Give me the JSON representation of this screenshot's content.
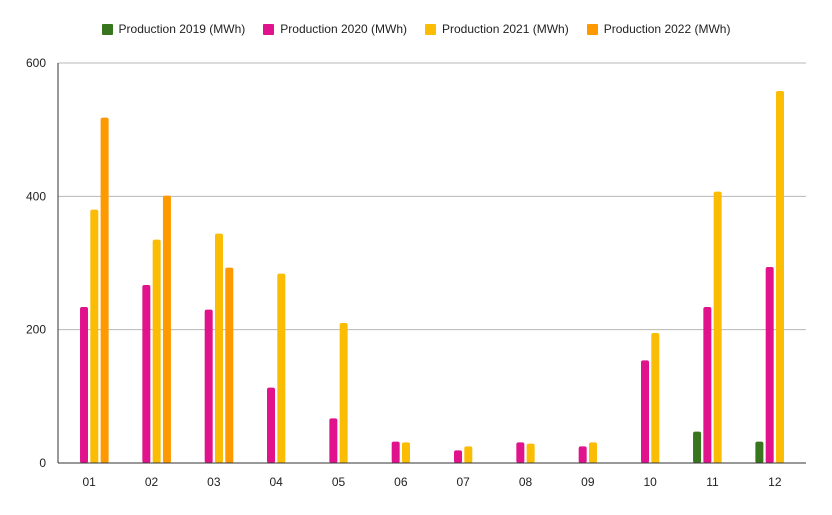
{
  "chart_data": {
    "type": "bar",
    "title": "",
    "xlabel": "",
    "ylabel": "",
    "categories": [
      "01",
      "02",
      "03",
      "04",
      "05",
      "06",
      "07",
      "08",
      "09",
      "10",
      "11",
      "12"
    ],
    "ylim": [
      0,
      600
    ],
    "yticks": [
      0,
      200,
      400,
      600
    ],
    "grid": true,
    "legend_position": "top",
    "series": [
      {
        "name": "Production 2019 (MWh)",
        "color": "#38761d",
        "values": [
          0,
          0,
          0,
          0,
          0,
          0,
          0,
          0,
          0,
          0,
          47,
          32
        ]
      },
      {
        "name": "Production 2020 (MWh)",
        "color": "#e0138c",
        "values": [
          234,
          267,
          230,
          113,
          67,
          32,
          19,
          31,
          25,
          154,
          234,
          294
        ]
      },
      {
        "name": "Production 2021 (MWh)",
        "color": "#fbbc04",
        "values": [
          380,
          335,
          344,
          284,
          210,
          31,
          25,
          29,
          31,
          195,
          407,
          558
        ]
      },
      {
        "name": "Production 2022 (MWh)",
        "color": "#ff9900",
        "values": [
          518,
          401,
          293,
          0,
          0,
          0,
          0,
          0,
          0,
          0,
          0,
          0
        ]
      }
    ]
  }
}
